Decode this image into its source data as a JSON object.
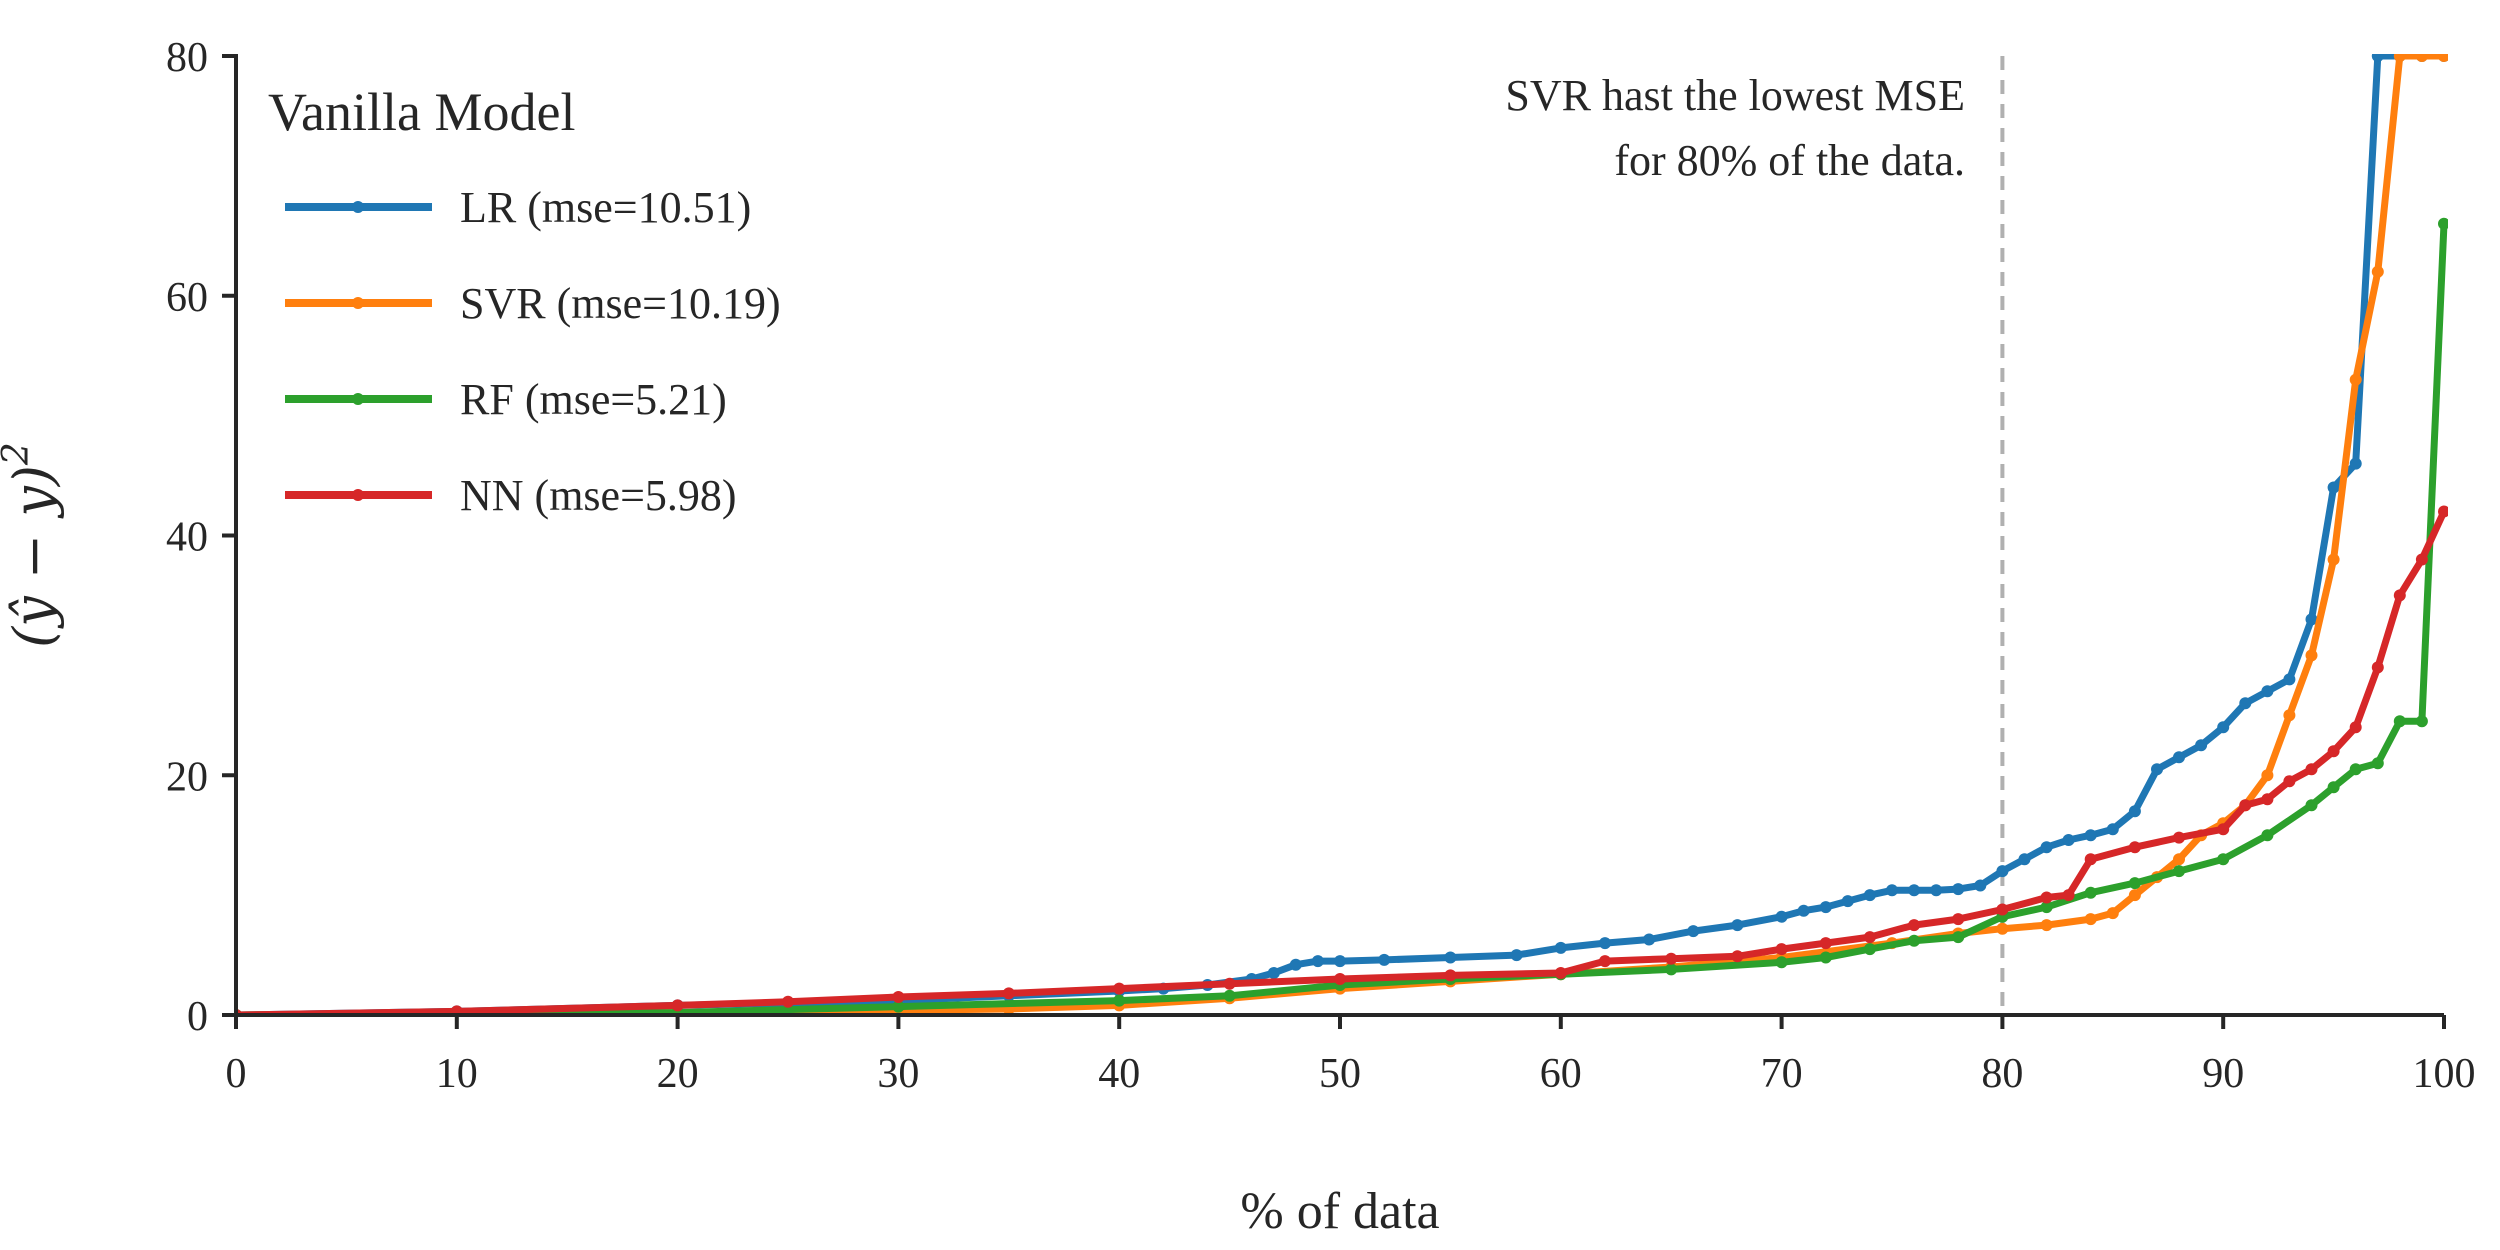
{
  "chart_data": {
    "type": "line",
    "title": "",
    "xlabel": "% of data",
    "ylabel": "(ŷ − y)",
    "ylabel_superscript": "2",
    "xlim": [
      0,
      100
    ],
    "ylim": [
      0,
      80
    ],
    "xticks": [
      "0",
      "10",
      "20",
      "30",
      "40",
      "50",
      "60",
      "70",
      "80",
      "90",
      "100"
    ],
    "yticks": [
      "0",
      "20",
      "40",
      "60",
      "80"
    ],
    "grid": false,
    "legend": {
      "title": "Vanilla Model",
      "position": "top-left"
    },
    "annotation": {
      "lines": [
        "SVR hast the lowest MSE",
        "for 80% of the data."
      ],
      "vline_x": 80
    },
    "series": [
      {
        "name": "LR (mse=10.51)",
        "color": "#1f77b4",
        "x": [
          0,
          10,
          20,
          30,
          35,
          40,
          42,
          44,
          46,
          47,
          48,
          49,
          50,
          52,
          55,
          58,
          60,
          62,
          64,
          66,
          68,
          70,
          71,
          72,
          73,
          74,
          75,
          76,
          77,
          78,
          79,
          80,
          81,
          82,
          83,
          84,
          85,
          86,
          87,
          88,
          89,
          90,
          91,
          92,
          93,
          94,
          95,
          96,
          97,
          98,
          99,
          100
        ],
        "y": [
          0,
          0.3,
          0.8,
          1.2,
          1.6,
          2.0,
          2.2,
          2.5,
          3.0,
          3.5,
          4.2,
          4.5,
          4.5,
          4.6,
          4.8,
          5.0,
          5.6,
          6.0,
          6.3,
          7.0,
          7.5,
          8.2,
          8.7,
          9.0,
          9.5,
          10.0,
          10.4,
          10.4,
          10.4,
          10.5,
          10.8,
          12.0,
          13.0,
          14.0,
          14.6,
          15.0,
          15.5,
          17.0,
          20.5,
          21.5,
          22.5,
          24.0,
          26.0,
          27.0,
          28.0,
          33.0,
          44.0,
          46.0,
          80.0,
          80.0,
          80.0,
          80.0
        ]
      },
      {
        "name": "SVR (mse=10.19)",
        "color": "#ff7f0e",
        "x": [
          0,
          10,
          20,
          30,
          35,
          40,
          45,
          50,
          55,
          60,
          65,
          70,
          75,
          78,
          80,
          82,
          84,
          85,
          86,
          87,
          88,
          89,
          90,
          91,
          92,
          93,
          94,
          95,
          96,
          97,
          98,
          99,
          100
        ],
        "y": [
          0,
          0.1,
          0.2,
          0.4,
          0.5,
          0.8,
          1.4,
          2.2,
          2.8,
          3.4,
          4.0,
          4.8,
          6.0,
          6.8,
          7.2,
          7.5,
          8.0,
          8.5,
          10.0,
          11.5,
          13.0,
          15.0,
          16.0,
          17.5,
          20.0,
          25.0,
          30.0,
          38.0,
          53.0,
          62.0,
          80.0,
          80.0,
          80.0
        ]
      },
      {
        "name": "RF (mse=5.21)",
        "color": "#2ca02c",
        "x": [
          0,
          10,
          20,
          30,
          40,
          45,
          50,
          55,
          60,
          65,
          70,
          72,
          74,
          76,
          78,
          80,
          82,
          84,
          86,
          88,
          90,
          92,
          94,
          95,
          96,
          97,
          98,
          99,
          100
        ],
        "y": [
          0,
          0.1,
          0.2,
          0.7,
          1.2,
          1.6,
          2.5,
          3.0,
          3.4,
          3.8,
          4.4,
          4.8,
          5.5,
          6.2,
          6.5,
          8.2,
          9.0,
          10.2,
          11.0,
          12.0,
          13.0,
          15.0,
          17.5,
          19.0,
          20.5,
          21.0,
          24.5,
          24.5,
          66.0
        ]
      },
      {
        "name": "NN (mse=5.98)",
        "color": "#d62728",
        "x": [
          0,
          10,
          20,
          25,
          30,
          35,
          40,
          45,
          50,
          55,
          60,
          62,
          65,
          68,
          70,
          72,
          74,
          76,
          78,
          80,
          82,
          83,
          84,
          86,
          88,
          90,
          91,
          92,
          93,
          94,
          95,
          96,
          97,
          98,
          99,
          100
        ],
        "y": [
          0,
          0.3,
          0.8,
          1.1,
          1.5,
          1.8,
          2.2,
          2.6,
          3.0,
          3.3,
          3.5,
          4.5,
          4.7,
          4.9,
          5.5,
          6.0,
          6.5,
          7.5,
          8.0,
          8.8,
          9.8,
          10.0,
          13.0,
          14.0,
          14.8,
          15.5,
          17.5,
          18.0,
          19.5,
          20.5,
          22.0,
          24.0,
          29.0,
          35.0,
          38.0,
          42.0
        ]
      }
    ]
  }
}
